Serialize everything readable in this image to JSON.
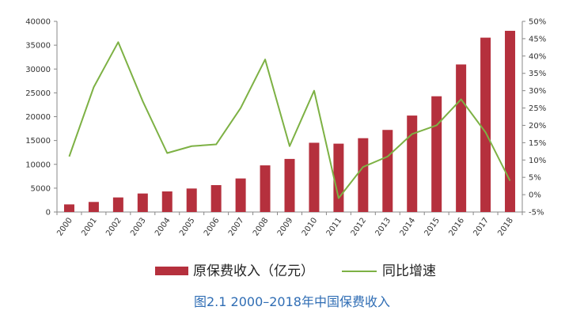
{
  "chart_data": {
    "type": "bar",
    "categories": [
      "2000",
      "2001",
      "2002",
      "2003",
      "2004",
      "2005",
      "2006",
      "2007",
      "2008",
      "2009",
      "2010",
      "2011",
      "2012",
      "2013",
      "2014",
      "2015",
      "2016",
      "2017",
      "2018"
    ],
    "series": [
      {
        "name": "原保费收入（亿元）",
        "type": "bar",
        "axis": "left",
        "color": "#b5303d",
        "values": [
          1596,
          2109,
          3053,
          3880,
          4318,
          4927,
          5640,
          7036,
          9784,
          11137,
          14528,
          14339,
          15488,
          17222,
          20235,
          24283,
          30959,
          36581,
          38017
        ]
      },
      {
        "name": "同比增速",
        "type": "line",
        "axis": "right",
        "color": "#7db144",
        "values": [
          11.0,
          31.0,
          44.0,
          27.0,
          12.0,
          14.0,
          14.5,
          25.0,
          39.0,
          14.0,
          30.0,
          -1.0,
          8.0,
          11.0,
          17.5,
          20.0,
          27.5,
          18.0,
          4.0
        ]
      }
    ],
    "y_left": {
      "min": 0,
      "max": 40000,
      "ticks": [
        "0",
        "5000",
        "10000",
        "15000",
        "20000",
        "25000",
        "30000",
        "35000",
        "40000"
      ]
    },
    "y_right": {
      "min": -5,
      "max": 50,
      "ticks": [
        "-5%",
        "0%",
        "5%",
        "10%",
        "15%",
        "20%",
        "25%",
        "30%",
        "35%",
        "40%",
        "45%",
        "50%"
      ]
    },
    "legend_position": "bottom",
    "grid": false,
    "caption": "图2.1   2000–2018年中国保费收入"
  }
}
